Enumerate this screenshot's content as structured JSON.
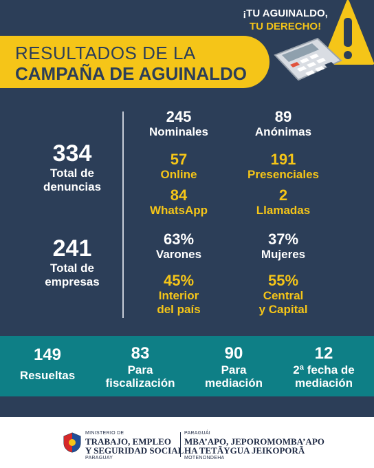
{
  "header": {
    "slogan_line1": "¡TU AGUINALDO,",
    "slogan_line2": "TU DERECHO!",
    "title_line1": "RESULTADOS DE LA",
    "title_line2": "CAMPAÑA DE AGUINALDO",
    "icons": [
      "warning-icon",
      "calculator-icon"
    ]
  },
  "colors": {
    "background": "#2c3e58",
    "accent": "#f5c518",
    "teal": "#0e7f86",
    "text": "#ffffff"
  },
  "left": {
    "total_denuncias": {
      "value": "334",
      "label1": "Total de",
      "label2": "denuncias"
    },
    "total_empresas": {
      "value": "241",
      "label1": "Total de",
      "label2": "empresas"
    }
  },
  "grid": {
    "nominales": {
      "value": "245",
      "label": "Nominales"
    },
    "anonimas": {
      "value": "89",
      "label": "Anónimas"
    },
    "online": {
      "value": "57",
      "label": "Online"
    },
    "presenciales": {
      "value": "191",
      "label": "Presenciales"
    },
    "whatsapp": {
      "value": "84",
      "label": "WhatsApp"
    },
    "llamadas": {
      "value": "2",
      "label": "Llamadas"
    },
    "varones": {
      "value": "63%",
      "label": "Varones"
    },
    "mujeres": {
      "value": "37%",
      "label": "Mujeres"
    },
    "interior": {
      "value": "45%",
      "label1": "Interior",
      "label2": "del país"
    },
    "central": {
      "value": "55%",
      "label1": "Central",
      "label2": "y Capital"
    }
  },
  "band": {
    "resueltas": {
      "value": "149",
      "label1": "Resueltas"
    },
    "fiscalizacion": {
      "value": "83",
      "label1": "Para",
      "label2": "fiscalización"
    },
    "mediacion": {
      "value": "90",
      "label1": "Para",
      "label2": "mediación"
    },
    "segunda": {
      "value": "12",
      "label1": "2ª fecha de",
      "label2": "mediación"
    }
  },
  "footer": {
    "ministry_small": "MINISTERIO DE",
    "ministry_line1": "TRABAJO, EMPLEO",
    "ministry_line2": "Y SEGURIDAD SOCIAL",
    "country_left": "PARAGUAY",
    "country_right_small": "PARAGUÁI",
    "guarani_line1": "MBA’APO, JEPOROMOMBA’APO",
    "guarani_line2": "HA TETÃYGUA JEIKOPORÃ",
    "guarani_small": "MOTENONDEHA"
  }
}
